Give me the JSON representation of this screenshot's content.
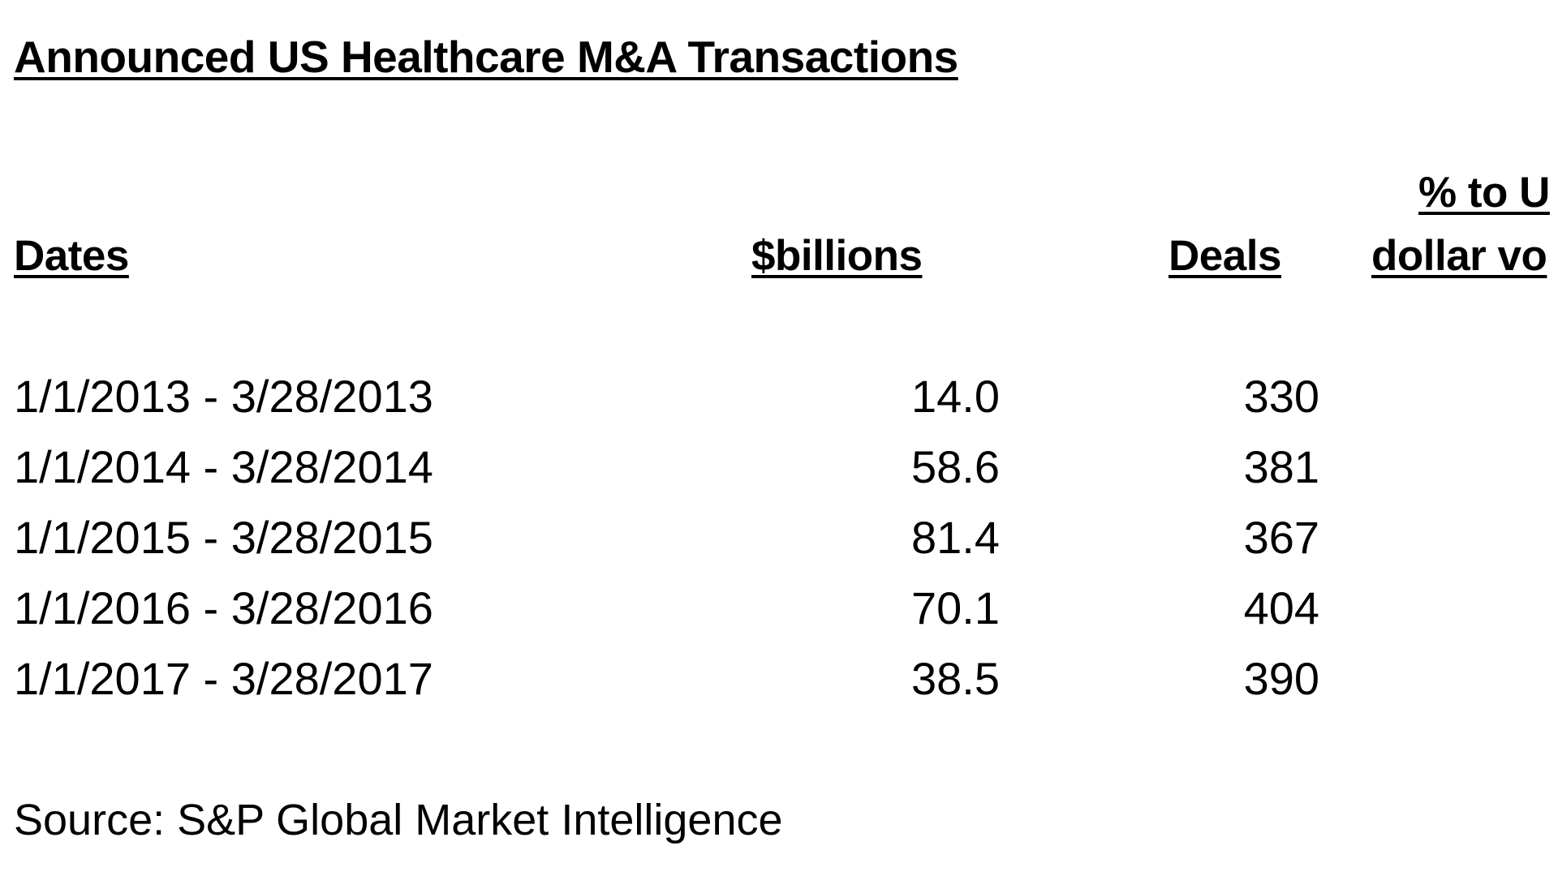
{
  "document": {
    "title": "Announced US Healthcare M&A Transactions",
    "headers": {
      "dates": "Dates",
      "billions": "$billions",
      "deals": "Deals",
      "pct_line1": "% to U",
      "pct_line2": "dollar vo"
    },
    "rows": [
      {
        "dates": "1/1/2013 - 3/28/2013",
        "billions": "14.0",
        "deals": "330"
      },
      {
        "dates": "1/1/2014 - 3/28/2014",
        "billions": "58.6",
        "deals": "381"
      },
      {
        "dates": "1/1/2015 - 3/28/2015",
        "billions": "81.4",
        "deals": "367"
      },
      {
        "dates": "1/1/2016 - 3/28/2016",
        "billions": "70.1",
        "deals": "404"
      },
      {
        "dates": "1/1/2017 - 3/28/2017",
        "billions": "38.5",
        "deals": "390"
      }
    ],
    "source": "Source: S&P Global Market Intelligence"
  }
}
